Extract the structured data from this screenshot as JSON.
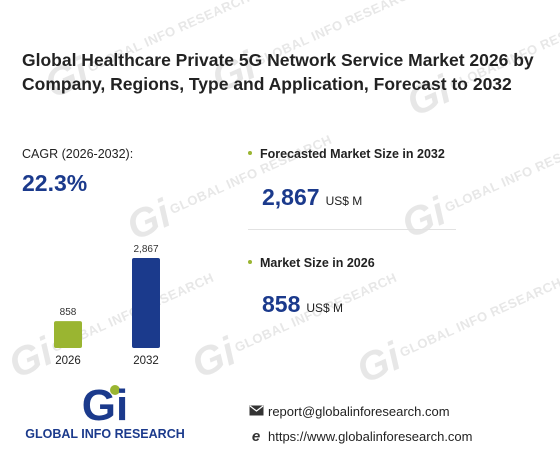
{
  "title": "Global Healthcare Private 5G Network Service Market 2026 by Company, Regions, Type and Application, Forecast to 2032",
  "cagr": {
    "label": "CAGR (2026-2032):",
    "value": "22.3%"
  },
  "forecast": {
    "label": "Forecasted Market Size in 2032",
    "value": "2,867",
    "unit": "US$ M"
  },
  "market_size": {
    "label": "Market Size in 2026",
    "value": "858",
    "unit": "US$ M"
  },
  "chart_data": {
    "type": "bar",
    "categories": [
      "2026",
      "2032"
    ],
    "values": [
      858,
      2867
    ],
    "value_labels": [
      "858",
      "2,867"
    ],
    "colors": [
      "#9ab531",
      "#1b3a8c"
    ]
  },
  "watermark_text": "GLOBAL INFO RESEARCH",
  "logo": {
    "letters": "Gi",
    "text": "GLOBAL INFO RESEARCH",
    "colors": {
      "blue": "#1b3a8c",
      "green": "#9ab531"
    }
  },
  "contact": {
    "email": "report@globalinforesearch.com",
    "email_icon": "envelope-icon",
    "website": "https://www.globalinforesearch.com",
    "website_icon": "browser-e-icon"
  },
  "colors": {
    "accent_blue": "#1b3a8c",
    "accent_green": "#9ab531"
  }
}
